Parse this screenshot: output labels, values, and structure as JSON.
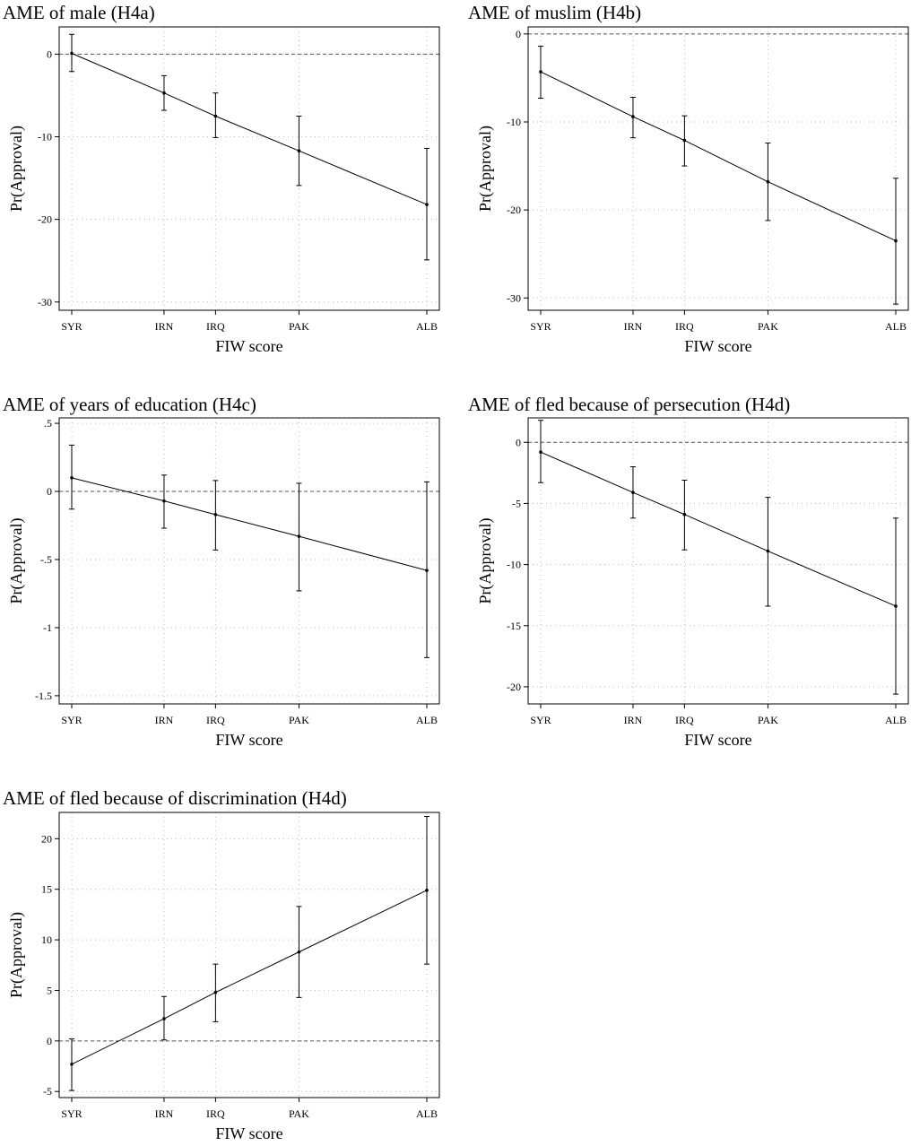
{
  "x_axis_label": "FIW score",
  "y_axis_label": "Pr(Approval)",
  "x_categories": [
    "SYR",
    "IRN",
    "IRQ",
    "PAK",
    "ALB"
  ],
  "x_positions": [
    0,
    0.26,
    0.405,
    0.64,
    1.0
  ],
  "chart_data": [
    {
      "type": "line",
      "title": "AME of male (H4a)",
      "xlabel": "FIW score",
      "ylabel": "Pr(Approval)",
      "categories": [
        "SYR",
        "IRN",
        "IRQ",
        "PAK",
        "ALB"
      ],
      "ylim": [
        -31,
        3.3
      ],
      "yticks": [
        0,
        -10,
        -20,
        -30
      ],
      "ytick_labels": [
        "0",
        "-10",
        "-20",
        "-30"
      ],
      "values": [
        0.1,
        -4.7,
        -7.5,
        -11.7,
        -18.2
      ],
      "ci_low": [
        -2.1,
        -6.8,
        -10.1,
        -15.9,
        -24.9
      ],
      "ci_high": [
        2.4,
        -2.6,
        -4.7,
        -7.5,
        -11.4
      ],
      "grid": true
    },
    {
      "type": "line",
      "title": "AME of muslim (H4b)",
      "xlabel": "FIW score",
      "ylabel": "Pr(Approval)",
      "categories": [
        "SYR",
        "IRN",
        "IRQ",
        "PAK",
        "ALB"
      ],
      "ylim": [
        -31.4,
        0.8
      ],
      "yticks": [
        0,
        -10,
        -20,
        -30
      ],
      "ytick_labels": [
        "0",
        "-10",
        "-20",
        "-30"
      ],
      "values": [
        -4.3,
        -9.4,
        -12.1,
        -16.8,
        -23.5
      ],
      "ci_low": [
        -7.3,
        -11.8,
        -15.0,
        -21.2,
        -30.7
      ],
      "ci_high": [
        -1.4,
        -7.2,
        -9.3,
        -12.4,
        -16.4
      ],
      "grid": true
    },
    {
      "type": "line",
      "title": "AME of years of education (H4c)",
      "xlabel": "FIW score",
      "ylabel": "Pr(Approval)",
      "categories": [
        "SYR",
        "IRN",
        "IRQ",
        "PAK",
        "ALB"
      ],
      "ylim": [
        -1.56,
        0.54
      ],
      "yticks": [
        0.5,
        0,
        -0.5,
        -1,
        -1.5
      ],
      "ytick_labels": [
        ".5",
        "0",
        "-.5",
        "-1",
        "-1.5"
      ],
      "values": [
        0.1,
        -0.07,
        -0.17,
        -0.33,
        -0.58
      ],
      "ci_low": [
        -0.13,
        -0.27,
        -0.43,
        -0.73,
        -1.22
      ],
      "ci_high": [
        0.34,
        0.12,
        0.08,
        0.06,
        0.07
      ],
      "grid": true
    },
    {
      "type": "line",
      "title": "AME of fled because of persecution (H4d)",
      "xlabel": "FIW score",
      "ylabel": "Pr(Approval)",
      "categories": [
        "SYR",
        "IRN",
        "IRQ",
        "PAK",
        "ALB"
      ],
      "ylim": [
        -21.4,
        2.0
      ],
      "yticks": [
        0,
        -5,
        -10,
        -15,
        -20
      ],
      "ytick_labels": [
        "0",
        "-5",
        "-10",
        "-15",
        "-20"
      ],
      "values": [
        -0.8,
        -4.1,
        -5.9,
        -8.9,
        -13.4
      ],
      "ci_low": [
        -3.3,
        -6.2,
        -8.8,
        -13.4,
        -20.6
      ],
      "ci_high": [
        1.8,
        -2.0,
        -3.1,
        -4.5,
        -6.2
      ],
      "grid": true
    },
    {
      "type": "line",
      "title": "AME of fled because of discrimination (H4d)",
      "xlabel": "FIW score",
      "ylabel": "Pr(Approval)",
      "categories": [
        "SYR",
        "IRN",
        "IRQ",
        "PAK",
        "ALB"
      ],
      "ylim": [
        -5.6,
        22.6
      ],
      "yticks": [
        20,
        15,
        10,
        5,
        0,
        -5
      ],
      "ytick_labels": [
        "20",
        "15",
        "10",
        "5",
        "0",
        "-5"
      ],
      "values": [
        -2.3,
        2.2,
        4.8,
        8.8,
        14.9
      ],
      "ci_low": [
        -4.9,
        0.1,
        1.9,
        4.3,
        7.6
      ],
      "ci_high": [
        0.2,
        4.4,
        7.6,
        13.3,
        22.2
      ],
      "grid": true
    }
  ]
}
